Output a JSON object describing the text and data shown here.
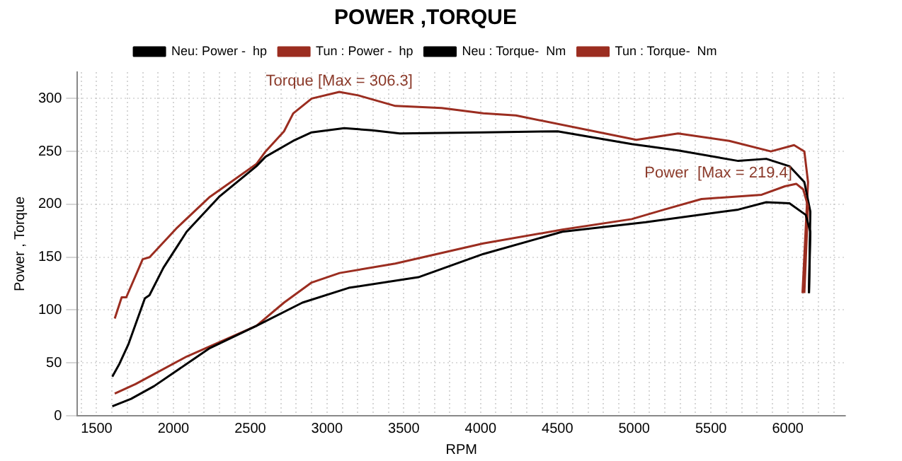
{
  "chart_data": {
    "type": "line",
    "title": "POWER ,TORQUE",
    "xlabel": "RPM",
    "ylabel": "Power , Torque",
    "xlim": [
      1375,
      6375
    ],
    "ylim": [
      0,
      325
    ],
    "xticks": [
      {
        "value": 1400,
        "label": null
      },
      1500,
      {
        "value": 1600,
        "label": null
      },
      {
        "value": 1700,
        "label": null
      },
      {
        "value": 1800,
        "label": null
      },
      {
        "value": 1900,
        "label": null
      },
      2000,
      {
        "value": 2100,
        "label": null
      },
      {
        "value": 2200,
        "label": null
      },
      {
        "value": 2300,
        "label": null
      },
      {
        "value": 2400,
        "label": null
      },
      2500,
      {
        "value": 2600,
        "label": null
      },
      {
        "value": 2700,
        "label": null
      },
      {
        "value": 2800,
        "label": null
      },
      {
        "value": 2900,
        "label": null
      },
      3000,
      {
        "value": 3100,
        "label": null
      },
      {
        "value": 3200,
        "label": null
      },
      {
        "value": 3300,
        "label": null
      },
      {
        "value": 3400,
        "label": null
      },
      3500,
      {
        "value": 3600,
        "label": null
      },
      {
        "value": 3700,
        "label": null
      },
      {
        "value": 3800,
        "label": null
      },
      {
        "value": 3900,
        "label": null
      },
      4000,
      {
        "value": 4100,
        "label": null
      },
      {
        "value": 4200,
        "label": null
      },
      {
        "value": 4300,
        "label": null
      },
      {
        "value": 4400,
        "label": null
      },
      4500,
      {
        "value": 4600,
        "label": null
      },
      {
        "value": 4700,
        "label": null
      },
      {
        "value": 4800,
        "label": null
      },
      {
        "value": 4900,
        "label": null
      },
      5000,
      {
        "value": 5100,
        "label": null
      },
      {
        "value": 5200,
        "label": null
      },
      {
        "value": 5300,
        "label": null
      },
      {
        "value": 5400,
        "label": null
      },
      5500,
      {
        "value": 5600,
        "label": null
      },
      {
        "value": 5700,
        "label": null
      },
      {
        "value": 5800,
        "label": null
      },
      {
        "value": 5900,
        "label": null
      },
      6000,
      {
        "value": 6100,
        "label": null
      },
      {
        "value": 6200,
        "label": null
      },
      {
        "value": 6300,
        "label": null
      }
    ],
    "yticks": [
      0,
      50,
      100,
      150,
      200,
      250,
      300
    ],
    "grid": true,
    "legend": "top",
    "marker": "none",
    "line_style": "solid",
    "annotations": [
      {
        "text": "Torque [Max = 306.3]",
        "x": 3080,
        "y": 306.3
      },
      {
        "text": "Power  [Max = 219.4]",
        "x": 6055,
        "y": 219.4
      }
    ],
    "series": [
      {
        "name": "Neu: Power -  hp",
        "color": "#000000",
        "x": [
          1602,
          1724,
          1874,
          2237,
          2540,
          2840,
          3142,
          3595,
          4018,
          4532,
          5075,
          5678,
          5860,
          6011,
          6117,
          6147,
          6138
        ],
        "values": [
          9,
          16,
          28,
          64,
          85,
          107,
          121,
          131,
          153,
          174,
          183,
          195,
          202,
          201,
          190,
          174,
          116
        ]
      },
      {
        "name": "Tun : Power -  hp",
        "color": "#9b2d20",
        "x": [
          1618,
          1754,
          2086,
          2540,
          2720,
          2900,
          3082,
          3445,
          4018,
          4532,
          4984,
          5196,
          5438,
          5830,
          5981,
          6055,
          6101,
          6132,
          6108
        ],
        "values": [
          21,
          30,
          56,
          85,
          107,
          126,
          135,
          144,
          163,
          176,
          186,
          195,
          205,
          209,
          217,
          219.4,
          214,
          198,
          116
        ]
      },
      {
        "name": "Neu : Torque-  Nm",
        "color": "#000000",
        "x": [
          1602,
          1648,
          1708,
          1814,
          1844,
          1935,
          2086,
          2297,
          2540,
          2600,
          2780,
          2900,
          3112,
          3293,
          3474,
          4018,
          4502,
          4984,
          5286,
          5678,
          5860,
          6011,
          6108,
          6147,
          6138
        ],
        "values": [
          37,
          49,
          68,
          111,
          114,
          140,
          174,
          207,
          236,
          245,
          260,
          268,
          272,
          270,
          267,
          268,
          269,
          257,
          251,
          241,
          243,
          236,
          221,
          193,
          116
        ]
      },
      {
        "name": "Tun : Torque-  Nm",
        "color": "#9b2d20",
        "x": [
          1618,
          1663,
          1693,
          1800,
          1845,
          2025,
          2237,
          2540,
          2600,
          2720,
          2780,
          2900,
          3080,
          3203,
          3445,
          3746,
          4018,
          4230,
          5014,
          5286,
          5619,
          5890,
          6041,
          6108,
          6132,
          6096
        ],
        "values": [
          92,
          112,
          112,
          148,
          150,
          178,
          207,
          238,
          250,
          269,
          286,
          300,
          306.3,
          303,
          293,
          291,
          286,
          284,
          261,
          267,
          260,
          250,
          256,
          250,
          221,
          116
        ]
      }
    ]
  }
}
